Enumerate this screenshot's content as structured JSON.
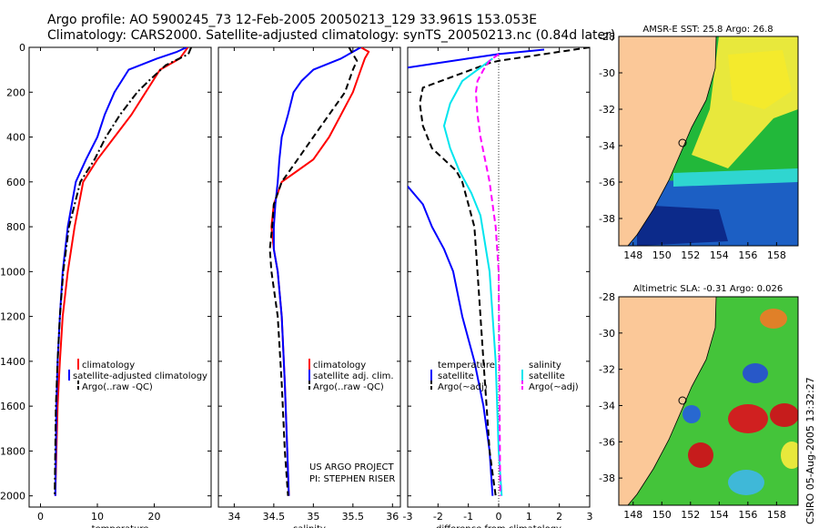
{
  "header": {
    "title_line1": "Argo profile: AO 5900245_73 12-Feb-2005 20050213_129 33.961S 153.053E",
    "title_line2": "Climatology: CARS2000. Satellite-adjusted climatology: synTS_20050213.nc (0.84d later)"
  },
  "stamp": "CSIRO 05-Aug-2005 13:32:27",
  "colors": {
    "climatology": "#ff0000",
    "satellite": "#0000ff",
    "argo": "#000000",
    "sat_salinity": "#00e5ee",
    "argo_adj_salinity": "#ff00ff",
    "land": "#fbc898"
  },
  "chart_data": [
    {
      "type": "line",
      "xlabel": "temperature",
      "xlim": [
        -2,
        30
      ],
      "xticks": [
        0,
        10,
        20
      ],
      "ylim": [
        2050,
        0
      ],
      "yticks": [
        0,
        200,
        400,
        600,
        800,
        1000,
        1200,
        1400,
        1600,
        1800,
        2000
      ],
      "legend": [
        "climatology",
        "satellite-adjusted climatology",
        "Argo(..raw -QC)"
      ],
      "series": [
        {
          "name": "climatology",
          "color": "red",
          "style": "solid",
          "x": [
            25.9,
            24.5,
            21.0,
            18.5,
            16.0,
            13.0,
            10.0,
            7.5,
            6.0,
            4.8,
            3.9,
            3.4,
            3.0,
            2.8,
            2.6
          ],
          "y": [
            0,
            50,
            100,
            200,
            300,
            400,
            500,
            600,
            800,
            1000,
            1200,
            1400,
            1600,
            1800,
            2000
          ]
        },
        {
          "name": "satellite-adjusted climatology",
          "color": "blue",
          "style": "solid",
          "x": [
            25.7,
            24.0,
            20.5,
            15.5,
            13.0,
            11.3,
            10.0,
            8.0,
            6.2,
            4.8,
            3.9,
            3.4,
            3.0,
            2.8,
            2.6
          ],
          "y": [
            0,
            20,
            50,
            100,
            200,
            300,
            400,
            500,
            600,
            800,
            1000,
            1200,
            1400,
            1600,
            2000
          ]
        },
        {
          "name": "Argo(..raw -QC)",
          "color": "black",
          "style": "dashdot",
          "x": [
            26.5,
            26.0,
            22.0,
            19.0,
            17.0,
            14.0,
            11.5,
            9.5,
            7.0,
            5.0,
            4.0,
            3.4,
            3.0,
            2.7,
            2.5
          ],
          "y": [
            0,
            30,
            80,
            150,
            200,
            300,
            400,
            500,
            600,
            800,
            1000,
            1200,
            1400,
            1600,
            2000
          ]
        }
      ]
    },
    {
      "type": "line",
      "xlabel": "salinity",
      "xlim": [
        33.8,
        36.1
      ],
      "xticks": [
        34,
        34.5,
        35,
        35.5,
        36
      ],
      "ylim": [
        2050,
        0
      ],
      "legend": [
        "climatology",
        "satellite adj. clim.",
        "Argo(..raw -QC)"
      ],
      "annotation": [
        "US ARGO PROJECT",
        "PI: STEPHEN RISER"
      ],
      "series": [
        {
          "name": "climatology",
          "color": "red",
          "style": "solid",
          "x": [
            35.6,
            35.7,
            35.65,
            35.6,
            35.5,
            35.35,
            35.2,
            35.0,
            34.8,
            34.6,
            34.5,
            34.47,
            34.5,
            34.55,
            34.6,
            34.64,
            34.67,
            34.69
          ],
          "y": [
            0,
            20,
            50,
            100,
            200,
            300,
            400,
            500,
            550,
            600,
            700,
            800,
            900,
            1000,
            1200,
            1500,
            1800,
            2000
          ]
        },
        {
          "name": "satellite adj. clim.",
          "color": "blue",
          "style": "solid",
          "x": [
            35.6,
            35.35,
            35.0,
            34.85,
            34.75,
            34.68,
            34.6,
            34.57,
            34.55,
            34.52,
            34.5,
            34.5,
            34.55,
            34.6,
            34.64,
            34.67,
            34.69
          ],
          "y": [
            0,
            50,
            100,
            150,
            200,
            300,
            400,
            500,
            600,
            700,
            800,
            900,
            1000,
            1200,
            1500,
            1800,
            2000
          ]
        },
        {
          "name": "Argo(..raw -QC)",
          "color": "black",
          "style": "dashed",
          "x": [
            35.45,
            35.5,
            35.55,
            35.5,
            35.4,
            35.2,
            35.0,
            34.8,
            34.7,
            34.6,
            34.5,
            34.48,
            34.45,
            34.47,
            34.55,
            34.6,
            34.64,
            34.68
          ],
          "y": [
            0,
            30,
            60,
            100,
            200,
            300,
            400,
            500,
            550,
            600,
            700,
            800,
            900,
            1000,
            1200,
            1500,
            1800,
            2000
          ]
        }
      ]
    },
    {
      "type": "line",
      "xlabel": "difference from climatology",
      "xlim": [
        -3,
        3
      ],
      "xticks": [
        -3,
        -2,
        -1,
        0,
        1,
        2,
        3
      ],
      "ylim": [
        2050,
        0
      ],
      "legend_left_header": "temperature",
      "legend_right_header": "salinity",
      "legend": [
        "satellite",
        "Argo(~adj)",
        "satellite",
        "Argo(~adj)"
      ],
      "series": [
        {
          "name": "temperature satellite (upper)",
          "color": "blue",
          "style": "solid",
          "x": [
            1.5,
            0.0,
            -1.0,
            -2.0,
            -3.0
          ],
          "y": [
            10,
            30,
            50,
            70,
            90
          ]
        },
        {
          "name": "temperature satellite (lower)",
          "color": "blue",
          "style": "solid",
          "x": [
            -3.0,
            -2.5,
            -2.2,
            -1.8,
            -1.5,
            -1.2,
            -0.8,
            -0.5,
            -0.3,
            -0.2
          ],
          "y": [
            620,
            700,
            800,
            900,
            1000,
            1200,
            1400,
            1600,
            1800,
            2000
          ]
        },
        {
          "name": "temperature Argo(~adj)",
          "color": "black",
          "style": "dashed",
          "x": [
            3.0,
            2.0,
            1.0,
            0.0,
            -0.3,
            -1.5,
            -2.5,
            -2.6,
            -2.5,
            -2.2,
            -1.8,
            -1.4,
            -1.2,
            -1.0,
            -0.8,
            -0.7,
            -0.6,
            -0.5,
            -0.4,
            -0.3,
            -0.2,
            -0.1
          ],
          "y": [
            0,
            20,
            40,
            60,
            70,
            130,
            180,
            250,
            350,
            450,
            500,
            550,
            600,
            700,
            800,
            1000,
            1200,
            1400,
            1600,
            1800,
            1900,
            2000
          ]
        },
        {
          "name": "salinity satellite",
          "color": "cyan",
          "style": "solid",
          "x": [
            -0.2,
            -0.6,
            -1.2,
            -1.6,
            -1.8,
            -1.6,
            -1.3,
            -0.9,
            -0.6,
            -0.3,
            -0.1,
            0.0,
            0.1
          ],
          "y": [
            50,
            90,
            150,
            250,
            350,
            450,
            550,
            650,
            750,
            1000,
            1400,
            1800,
            2000
          ]
        },
        {
          "name": "salinity Argo(~adj)",
          "color": "magenta",
          "style": "dashed",
          "x": [
            0.0,
            -0.3,
            -0.5,
            -0.7,
            -0.75,
            -0.7,
            -0.6,
            -0.45,
            -0.3,
            -0.2,
            -0.1,
            0.0,
            0.05
          ],
          "y": [
            30,
            60,
            100,
            150,
            200,
            300,
            400,
            500,
            600,
            700,
            800,
            1000,
            2000
          ]
        }
      ]
    },
    {
      "type": "heatmap",
      "title": "AMSR-E SST: 25.8 Argo: 26.8",
      "xlim": [
        147,
        159.5
      ],
      "ylim": [
        -39.5,
        -28
      ],
      "xticks": [
        148,
        150,
        152,
        154,
        156,
        158
      ],
      "yticks": [
        -28,
        -30,
        -32,
        -34,
        -36,
        -38
      ],
      "argo_position": {
        "lon": 153.053,
        "lat": -33.961
      }
    },
    {
      "type": "heatmap",
      "title": "Altimetric SLA: -0.31 Argo: 0.026",
      "xlim": [
        147,
        159.5
      ],
      "ylim": [
        -39.5,
        -28
      ],
      "xticks": [
        148,
        150,
        152,
        154,
        156,
        158
      ],
      "yticks": [
        -28,
        -30,
        -32,
        -34,
        -36,
        -38
      ],
      "argo_position": {
        "lon": 153.053,
        "lat": -33.961
      }
    }
  ]
}
